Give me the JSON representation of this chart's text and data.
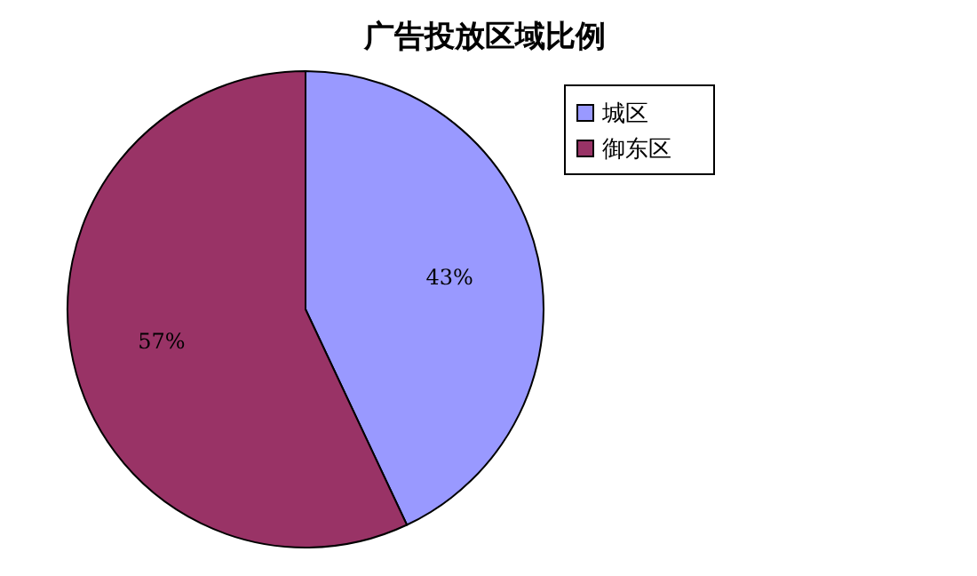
{
  "chart_data": {
    "type": "pie",
    "title": "广告投放区域比例",
    "categories": [
      "城区",
      "御东区"
    ],
    "values": [
      43,
      57
    ],
    "colors": [
      "#9999ff",
      "#993366"
    ],
    "value_labels": [
      "43%",
      "57%"
    ],
    "legend": "top right"
  }
}
